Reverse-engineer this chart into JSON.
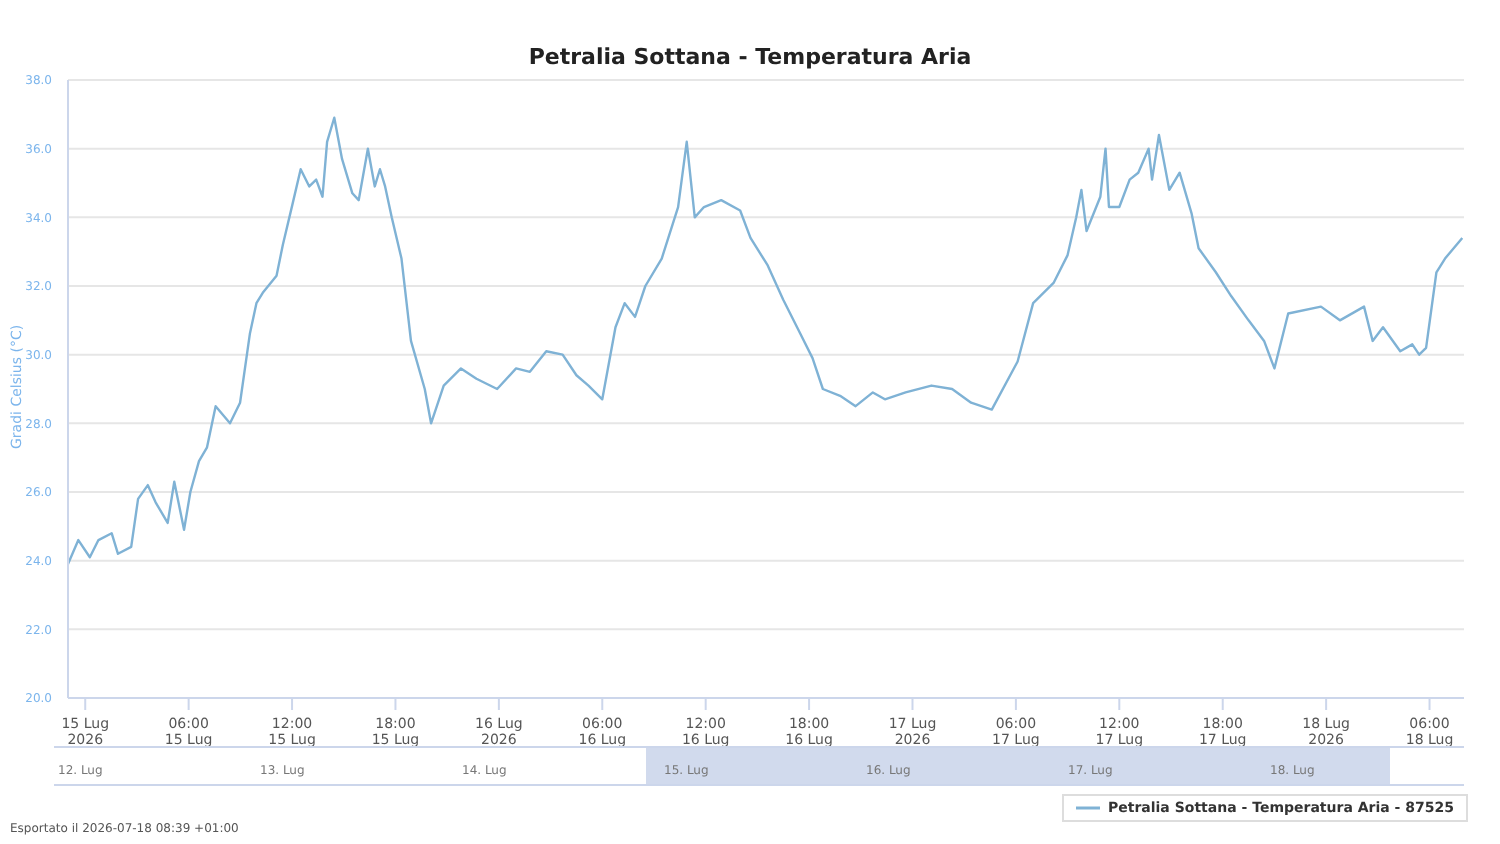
{
  "chart_data": {
    "type": "line",
    "title": "Petralia Sottana - Temperatura Aria",
    "ylabel": "Gradi Celsius (°C)",
    "x": [
      "2026-07-14T23:00",
      "2026-07-14T23:36",
      "2026-07-15T00:16",
      "2026-07-15T00:46",
      "2026-07-15T01:32",
      "2026-07-15T01:54",
      "2026-07-15T02:40",
      "2026-07-15T03:04",
      "2026-07-15T03:38",
      "2026-07-15T04:05",
      "2026-07-15T04:47",
      "2026-07-15T05:10",
      "2026-07-15T05:44",
      "2026-07-15T06:06",
      "2026-07-15T06:36",
      "2026-07-15T07:04",
      "2026-07-15T07:34",
      "2026-07-15T08:24",
      "2026-07-15T08:59",
      "2026-07-15T09:33",
      "2026-07-15T09:56",
      "2026-07-15T10:18",
      "2026-07-15T11:06",
      "2026-07-15T11:28",
      "2026-07-15T12:02",
      "2026-07-15T12:30",
      "2026-07-15T13:00",
      "2026-07-15T13:24",
      "2026-07-15T13:46",
      "2026-07-15T14:02",
      "2026-07-15T14:27",
      "2026-07-15T14:54",
      "2026-07-15T15:30",
      "2026-07-15T15:52",
      "2026-07-15T16:24",
      "2026-07-15T16:48",
      "2026-07-15T17:06",
      "2026-07-15T17:24",
      "2026-07-15T17:47",
      "2026-07-15T18:21",
      "2026-07-15T18:54",
      "2026-07-15T19:42",
      "2026-07-15T20:04",
      "2026-07-15T20:48",
      "2026-07-15T21:48",
      "2026-07-15T22:42",
      "2026-07-15T23:54",
      "2026-07-16T01:00",
      "2026-07-16T01:48",
      "2026-07-16T02:45",
      "2026-07-16T03:42",
      "2026-07-16T04:30",
      "2026-07-16T05:12",
      "2026-07-16T06:00",
      "2026-07-16T06:46",
      "2026-07-16T07:18",
      "2026-07-16T07:54",
      "2026-07-16T08:30",
      "2026-07-16T09:27",
      "2026-07-16T10:24",
      "2026-07-16T10:54",
      "2026-07-16T11:22",
      "2026-07-16T11:54",
      "2026-07-16T12:54",
      "2026-07-16T14:00",
      "2026-07-16T14:36",
      "2026-07-16T15:36",
      "2026-07-16T16:30",
      "2026-07-16T17:30",
      "2026-07-16T18:12",
      "2026-07-16T18:48",
      "2026-07-16T19:48",
      "2026-07-16T20:42",
      "2026-07-16T21:42",
      "2026-07-16T22:24",
      "2026-07-16T23:36",
      "2026-07-17T01:06",
      "2026-07-17T02:18",
      "2026-07-17T03:24",
      "2026-07-17T04:36",
      "2026-07-17T06:06",
      "2026-07-17T07:00",
      "2026-07-17T07:36",
      "2026-07-17T08:12",
      "2026-07-17T09:00",
      "2026-07-17T09:30",
      "2026-07-17T09:48",
      "2026-07-17T10:06",
      "2026-07-17T10:54",
      "2026-07-17T11:12",
      "2026-07-17T11:24",
      "2026-07-17T12:00",
      "2026-07-17T12:36",
      "2026-07-17T13:06",
      "2026-07-17T13:42",
      "2026-07-17T13:54",
      "2026-07-17T14:18",
      "2026-07-17T14:54",
      "2026-07-17T15:30",
      "2026-07-17T16:12",
      "2026-07-17T16:36",
      "2026-07-17T17:36",
      "2026-07-17T18:30",
      "2026-07-17T19:30",
      "2026-07-17T20:24",
      "2026-07-17T21:00",
      "2026-07-17T21:48",
      "2026-07-17T23:42",
      "2026-07-18T00:48",
      "2026-07-18T02:12",
      "2026-07-18T02:42",
      "2026-07-18T03:18",
      "2026-07-18T04:18",
      "2026-07-18T05:00",
      "2026-07-18T05:24",
      "2026-07-18T05:48",
      "2026-07-18T06:24",
      "2026-07-18T06:54",
      "2026-07-18T07:54"
    ],
    "series": [
      {
        "name": "Petralia Sottana - Temperatura Aria - 87525",
        "color": "#7fb2d5",
        "values": [
          23.9,
          24.6,
          24.1,
          24.6,
          24.8,
          24.2,
          24.4,
          25.8,
          26.2,
          25.7,
          25.1,
          26.3,
          24.9,
          26.0,
          26.9,
          27.3,
          28.5,
          28.0,
          28.6,
          30.6,
          31.5,
          31.8,
          32.3,
          33.2,
          34.4,
          35.4,
          34.9,
          35.1,
          34.6,
          36.2,
          36.9,
          35.7,
          34.7,
          34.5,
          36.0,
          34.9,
          35.4,
          34.9,
          34.0,
          32.8,
          30.4,
          29.0,
          28.0,
          29.1,
          29.6,
          29.3,
          29.0,
          29.6,
          29.5,
          30.1,
          30.0,
          29.4,
          29.1,
          28.7,
          30.8,
          31.5,
          31.1,
          32.0,
          32.8,
          34.3,
          36.2,
          34.0,
          34.3,
          34.5,
          34.2,
          33.4,
          32.6,
          31.6,
          30.6,
          29.9,
          29.0,
          28.8,
          28.5,
          28.9,
          28.7,
          28.9,
          29.1,
          29.0,
          28.6,
          28.4,
          29.8,
          31.5,
          31.8,
          32.1,
          32.9,
          34.0,
          34.8,
          33.6,
          34.6,
          36.0,
          34.3,
          34.3,
          35.1,
          35.3,
          36.0,
          35.1,
          36.4,
          34.8,
          35.3,
          34.1,
          33.1,
          32.4,
          31.7,
          31.0,
          30.4,
          29.6,
          31.2,
          31.4,
          31.0,
          31.4,
          30.4,
          30.8,
          30.1,
          30.3,
          30.0,
          30.2,
          32.4,
          32.8,
          33.4
        ]
      }
    ],
    "xlim": [
      "2026-07-14T23:00",
      "2026-07-18T08:00"
    ],
    "xticks": [
      {
        "value": "2026-07-15T00:00",
        "label": "15 Lug\n2026"
      },
      {
        "value": "2026-07-15T06:00",
        "label": "06:00\n15 Lug"
      },
      {
        "value": "2026-07-15T12:00",
        "label": "12:00\n15 Lug"
      },
      {
        "value": "2026-07-15T18:00",
        "label": "18:00\n15 Lug"
      },
      {
        "value": "2026-07-16T00:00",
        "label": "16 Lug\n2026"
      },
      {
        "value": "2026-07-16T06:00",
        "label": "06:00\n16 Lug"
      },
      {
        "value": "2026-07-16T12:00",
        "label": "12:00\n16 Lug"
      },
      {
        "value": "2026-07-16T18:00",
        "label": "18:00\n16 Lug"
      },
      {
        "value": "2026-07-17T00:00",
        "label": "17 Lug\n2026"
      },
      {
        "value": "2026-07-17T06:00",
        "label": "06:00\n17 Lug"
      },
      {
        "value": "2026-07-17T12:00",
        "label": "12:00\n17 Lug"
      },
      {
        "value": "2026-07-17T18:00",
        "label": "18:00\n17 Lug"
      },
      {
        "value": "2026-07-18T00:00",
        "label": "18 Lug\n2026"
      },
      {
        "value": "2026-07-18T06:00",
        "label": "06:00\n18 Lug"
      }
    ],
    "ylim": [
      20,
      38
    ],
    "yticks": [
      {
        "value": 20,
        "label": "20.0"
      },
      {
        "value": 22,
        "label": "22.0"
      },
      {
        "value": 24,
        "label": "24.0"
      },
      {
        "value": 26,
        "label": "26.0"
      },
      {
        "value": 28,
        "label": "28.0"
      },
      {
        "value": 30,
        "label": "30.0"
      },
      {
        "value": 32,
        "label": "32.0"
      },
      {
        "value": 34,
        "label": "34.0"
      },
      {
        "value": 36,
        "label": "36.0"
      },
      {
        "value": 38,
        "label": "38.0"
      }
    ],
    "grid": "y",
    "legend": "bottom right",
    "marker": "none",
    "line_style": "solid",
    "annotations": [
      "Esportato il 2026-07-18 08:39 +01:00",
      "12. Lug",
      "13. Lug",
      "14. Lug",
      "15. Lug",
      "16. Lug",
      "17. Lug",
      "18. Lug"
    ]
  }
}
